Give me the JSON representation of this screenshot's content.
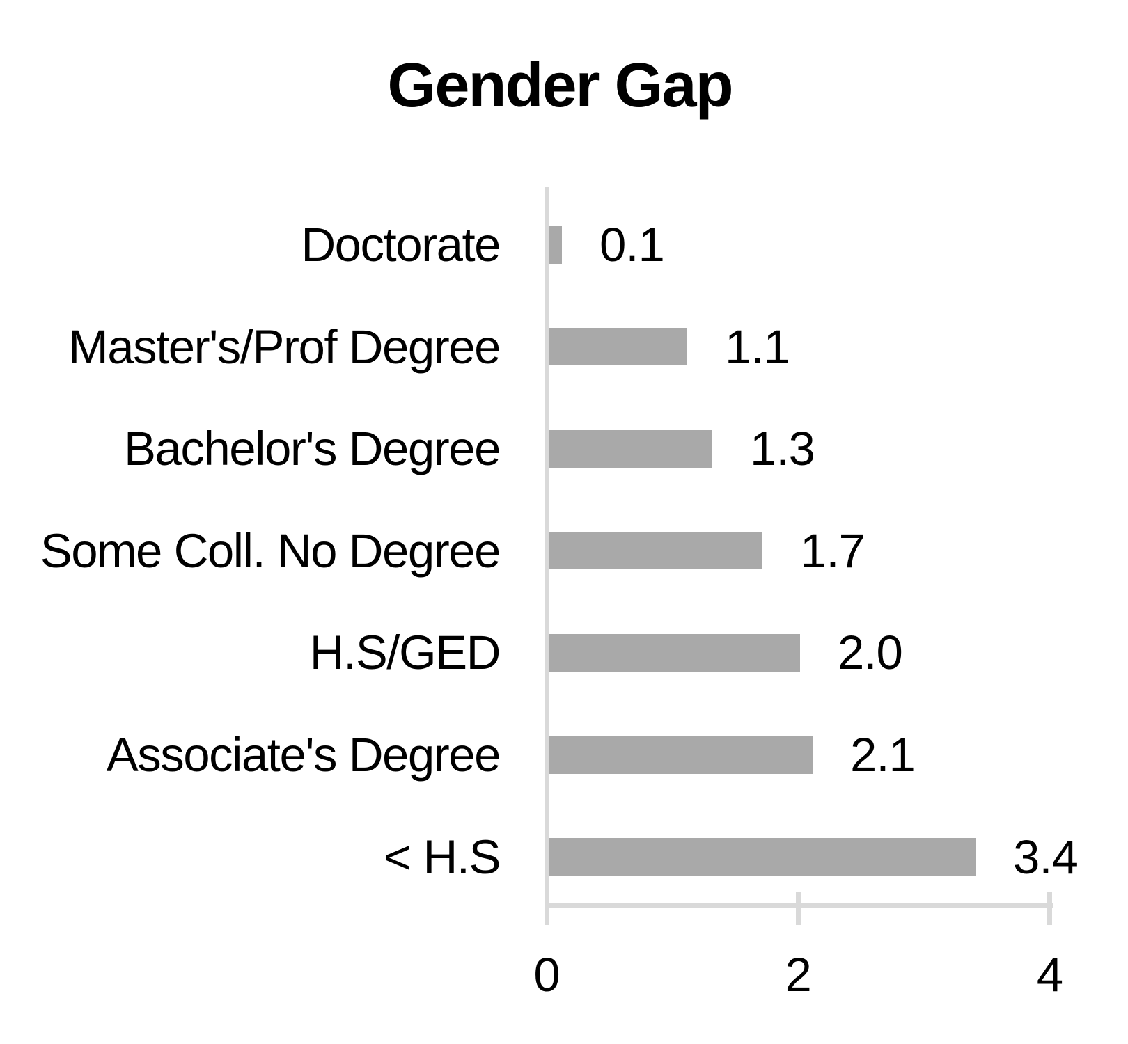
{
  "chart_data": {
    "type": "bar",
    "orientation": "horizontal",
    "title": "Gender Gap",
    "categories": [
      "Doctorate",
      "Master's/Prof Degree",
      "Bachelor's Degree",
      "Some Coll. No Degree",
      "H.S/GED",
      "Associate's Degree",
      "< H.S"
    ],
    "values": [
      0.1,
      1.1,
      1.3,
      1.7,
      2.0,
      2.1,
      3.4
    ],
    "value_labels": [
      "0.1",
      "1.1",
      "1.3",
      "1.7",
      "2.0",
      "2.1",
      "3.4"
    ],
    "x_ticks": [
      {
        "value": 0,
        "label": "0"
      },
      {
        "value": 2,
        "label": "2"
      },
      {
        "value": 4,
        "label": "4"
      }
    ],
    "xlim": [
      0,
      4
    ],
    "xlabel": "",
    "ylabel": "",
    "grid": false,
    "legend": false,
    "bar_color": "#a9a9a9",
    "axis_color": "#d9d9d9",
    "text_color": "#000000",
    "background_color": "#ffffff"
  }
}
